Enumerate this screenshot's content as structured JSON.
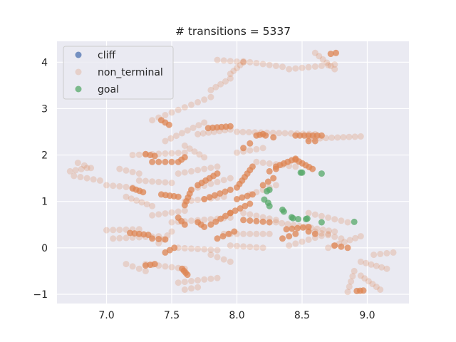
{
  "chart_data": {
    "type": "scatter",
    "title": "# transitions = 5337",
    "xlabel": "",
    "ylabel": "",
    "xlim": [
      6.62,
      9.32
    ],
    "ylim": [
      -1.2,
      4.45
    ],
    "xticks": [
      "7.0",
      "7.5",
      "8.0",
      "8.5",
      "9.0"
    ],
    "yticks": [
      "−1",
      "0",
      "1",
      "2",
      "3",
      "4"
    ],
    "grid": true,
    "legend_position": "top-left",
    "colors": {
      "cliff": "#4c72b0",
      "non_terminal": "#dd8452",
      "goal": "#55a868",
      "background": "#eaeaf2"
    },
    "series": [
      {
        "name": "cliff",
        "points": []
      },
      {
        "name": "non_terminal",
        "alpha": 0.25,
        "segments": [
          {
            "start": [
              6.72,
              1.65
            ],
            "end": [
              6.85,
              1.72
            ],
            "n": 4
          },
          {
            "start": [
              6.75,
              1.55
            ],
            "end": [
              6.95,
              1.45
            ],
            "n": 5
          },
          {
            "start": [
              6.78,
              1.83
            ],
            "end": [
              6.88,
              1.72
            ],
            "n": 3
          },
          {
            "start": [
              7.0,
              1.35
            ],
            "end": [
              7.2,
              1.3
            ],
            "n": 5
          },
          {
            "start": [
              7.0,
              0.38
            ],
            "end": [
              7.25,
              0.4
            ],
            "n": 6
          },
          {
            "start": [
              7.05,
              0.2
            ],
            "end": [
              7.4,
              0.25
            ],
            "n": 8
          },
          {
            "start": [
              7.1,
              1.7
            ],
            "end": [
              7.25,
              1.6
            ],
            "n": 4
          },
          {
            "start": [
              7.15,
              1.1
            ],
            "end": [
              7.35,
              0.9
            ],
            "n": 6
          },
          {
            "start": [
              7.2,
              2.0
            ],
            "end": [
              7.6,
              2.05
            ],
            "n": 9
          },
          {
            "start": [
              7.35,
              2.75
            ],
            "end": [
              7.8,
              3.25
            ],
            "n": 10
          },
          {
            "start": [
              7.45,
              2.3
            ],
            "end": [
              7.75,
              2.7
            ],
            "n": 8
          },
          {
            "start": [
              7.7,
              2.45
            ],
            "end": [
              7.95,
              2.55
            ],
            "n": 7
          },
          {
            "start": [
              7.8,
              3.4
            ],
            "end": [
              7.95,
              3.65
            ],
            "n": 5
          },
          {
            "start": [
              7.95,
              3.75
            ],
            "end": [
              8.05,
              4.0
            ],
            "n": 5
          },
          {
            "start": [
              7.85,
              4.05
            ],
            "end": [
              8.05,
              4.0
            ],
            "n": 5
          },
          {
            "start": [
              8.05,
              4.02
            ],
            "end": [
              8.35,
              3.9
            ],
            "n": 7
          },
          {
            "start": [
              8.4,
              3.85
            ],
            "end": [
              8.75,
              3.95
            ],
            "n": 8
          },
          {
            "start": [
              8.6,
              4.2
            ],
            "end": [
              8.75,
              3.85
            ],
            "n": 6
          },
          {
            "start": [
              8.0,
              2.5
            ],
            "end": [
              8.6,
              2.45
            ],
            "n": 14
          },
          {
            "start": [
              8.55,
              2.35
            ],
            "end": [
              8.95,
              2.4
            ],
            "n": 10
          },
          {
            "start": [
              8.15,
              1.85
            ],
            "end": [
              8.45,
              1.75
            ],
            "n": 7
          },
          {
            "start": [
              8.0,
              2.05
            ],
            "end": [
              8.2,
              2.15
            ],
            "n": 5
          },
          {
            "start": [
              8.3,
              0.55
            ],
            "end": [
              8.75,
              0.35
            ],
            "n": 11
          },
          {
            "start": [
              8.4,
              0.05
            ],
            "end": [
              8.7,
              0.3
            ],
            "n": 7
          },
          {
            "start": [
              8.7,
              0.0
            ],
            "end": [
              8.95,
              0.25
            ],
            "n": 7
          },
          {
            "start": [
              8.95,
              -0.3
            ],
            "end": [
              9.15,
              -0.45
            ],
            "n": 6
          },
          {
            "start": [
              8.95,
              -0.6
            ],
            "end": [
              9.1,
              -0.9
            ],
            "n": 6
          },
          {
            "start": [
              8.85,
              -0.95
            ],
            "end": [
              8.9,
              -0.5
            ],
            "n": 5
          },
          {
            "start": [
              9.05,
              -0.15
            ],
            "end": [
              9.2,
              -0.1
            ],
            "n": 4
          },
          {
            "start": [
              7.3,
              -0.35
            ],
            "end": [
              7.6,
              -0.45
            ],
            "n": 7
          },
          {
            "start": [
              7.55,
              -0.75
            ],
            "end": [
              7.85,
              -0.65
            ],
            "n": 7
          },
          {
            "start": [
              7.6,
              -0.9
            ],
            "end": [
              7.7,
              -0.85
            ],
            "n": 3
          },
          {
            "start": [
              7.55,
              0.0
            ],
            "end": [
              7.85,
              -0.05
            ],
            "n": 7
          },
          {
            "start": [
              7.8,
              -0.15
            ],
            "end": [
              7.95,
              -0.3
            ],
            "n": 4
          },
          {
            "start": [
              7.95,
              0.05
            ],
            "end": [
              8.2,
              0.0
            ],
            "n": 6
          },
          {
            "start": [
              7.5,
              0.55
            ],
            "end": [
              7.95,
              0.65
            ],
            "n": 10
          },
          {
            "start": [
              7.6,
              1.0
            ],
            "end": [
              7.9,
              1.1
            ],
            "n": 7
          },
          {
            "start": [
              7.7,
              1.3
            ],
            "end": [
              7.95,
              1.5
            ],
            "n": 6
          },
          {
            "start": [
              7.55,
              1.6
            ],
            "end": [
              7.85,
              1.75
            ],
            "n": 7
          },
          {
            "start": [
              7.9,
              0.3
            ],
            "end": [
              8.25,
              0.3
            ],
            "n": 8
          },
          {
            "start": [
              8.05,
              0.75
            ],
            "end": [
              8.3,
              0.6
            ],
            "n": 6
          },
          {
            "start": [
              8.1,
              1.15
            ],
            "end": [
              8.3,
              1.35
            ],
            "n": 5
          },
          {
            "start": [
              7.25,
              1.45
            ],
            "end": [
              7.5,
              1.4
            ],
            "n": 6
          },
          {
            "start": [
              7.35,
              0.7
            ],
            "end": [
              7.6,
              0.8
            ],
            "n": 6
          },
          {
            "start": [
              7.4,
              0.1
            ],
            "end": [
              7.5,
              0.35
            ],
            "n": 4
          },
          {
            "start": [
              7.6,
              2.2
            ],
            "end": [
              7.75,
              1.95
            ],
            "n": 5
          },
          {
            "start": [
              7.15,
              -0.35
            ],
            "end": [
              7.3,
              -0.5
            ],
            "n": 4
          },
          {
            "start": [
              8.55,
              0.75
            ],
            "end": [
              8.85,
              0.55
            ],
            "n": 7
          },
          {
            "start": [
              8.6,
              0.35
            ],
            "end": [
              8.8,
              0.2
            ],
            "n": 5
          }
        ]
      },
      {
        "name": "non_terminal",
        "alpha": 0.75,
        "segments": [
          {
            "start": [
              7.18,
              0.32
            ],
            "end": [
              7.32,
              0.28
            ],
            "n": 5
          },
          {
            "start": [
              7.2,
              1.28
            ],
            "end": [
              7.28,
              1.2
            ],
            "n": 4
          },
          {
            "start": [
              7.3,
              2.02
            ],
            "end": [
              7.37,
              1.98
            ],
            "n": 3
          },
          {
            "start": [
              7.35,
              1.85
            ],
            "end": [
              7.5,
              1.85
            ],
            "n": 4
          },
          {
            "start": [
              7.42,
              2.75
            ],
            "end": [
              7.48,
              2.65
            ],
            "n": 3
          },
          {
            "start": [
              7.42,
              1.15
            ],
            "end": [
              7.55,
              1.1
            ],
            "n": 5
          },
          {
            "start": [
              7.35,
              0.2
            ],
            "end": [
              7.45,
              0.18
            ],
            "n": 3
          },
          {
            "start": [
              7.3,
              -0.38
            ],
            "end": [
              7.37,
              -0.35
            ],
            "n": 3
          },
          {
            "start": [
              7.45,
              -0.1
            ],
            "end": [
              7.52,
              0.0
            ],
            "n": 3
          },
          {
            "start": [
              7.58,
              -0.45
            ],
            "end": [
              7.62,
              -0.58
            ],
            "n": 4
          },
          {
            "start": [
              7.55,
              0.65
            ],
            "end": [
              7.6,
              0.5
            ],
            "n": 3
          },
          {
            "start": [
              7.6,
              0.92
            ],
            "end": [
              7.65,
              1.25
            ],
            "n": 5
          },
          {
            "start": [
              7.6,
              1.95
            ],
            "end": [
              7.55,
              1.85
            ],
            "n": 3
          },
          {
            "start": [
              7.7,
              1.35
            ],
            "end": [
              7.85,
              1.6
            ],
            "n": 6
          },
          {
            "start": [
              7.75,
              1.05
            ],
            "end": [
              7.95,
              1.25
            ],
            "n": 6
          },
          {
            "start": [
              7.8,
              0.5
            ],
            "end": [
              7.95,
              0.75
            ],
            "n": 5
          },
          {
            "start": [
              7.7,
              0.55
            ],
            "end": [
              7.75,
              0.45
            ],
            "n": 3
          },
          {
            "start": [
              7.85,
              0.2
            ],
            "end": [
              7.98,
              0.35
            ],
            "n": 4
          },
          {
            "start": [
              7.78,
              2.58
            ],
            "end": [
              7.95,
              2.62
            ],
            "n": 6
          },
          {
            "start": [
              8.0,
              1.3
            ],
            "end": [
              8.12,
              1.75
            ],
            "n": 7
          },
          {
            "start": [
              8.0,
              1.05
            ],
            "end": [
              8.12,
              1.15
            ],
            "n": 4
          },
          {
            "start": [
              7.95,
              0.75
            ],
            "end": [
              8.1,
              0.95
            ],
            "n": 5
          },
          {
            "start": [
              8.05,
              0.6
            ],
            "end": [
              8.25,
              0.55
            ],
            "n": 5
          },
          {
            "start": [
              8.15,
              2.42
            ],
            "end": [
              8.2,
              2.45
            ],
            "n": 3
          },
          {
            "start": [
              8.05,
              2.15
            ],
            "end": [
              8.1,
              2.25
            ],
            "n": 2
          },
          {
            "start": [
              8.22,
              2.42
            ],
            "end": [
              8.28,
              2.38
            ],
            "n": 2
          },
          {
            "start": [
              8.25,
              1.65
            ],
            "end": [
              8.3,
              1.7
            ],
            "n": 2
          },
          {
            "start": [
              8.3,
              1.75
            ],
            "end": [
              8.45,
              1.92
            ],
            "n": 6
          },
          {
            "start": [
              8.45,
              1.9
            ],
            "end": [
              8.58,
              1.7
            ],
            "n": 6
          },
          {
            "start": [
              8.45,
              2.42
            ],
            "end": [
              8.65,
              2.42
            ],
            "n": 7
          },
          {
            "start": [
              8.55,
              2.3
            ],
            "end": [
              8.6,
              2.3
            ],
            "n": 2
          },
          {
            "start": [
              8.38,
              0.4
            ],
            "end": [
              8.55,
              0.45
            ],
            "n": 5
          },
          {
            "start": [
              8.35,
              0.2
            ],
            "end": [
              8.45,
              0.3
            ],
            "n": 3
          },
          {
            "start": [
              8.55,
              0.35
            ],
            "end": [
              8.6,
              0.3
            ],
            "n": 2
          },
          {
            "start": [
              8.75,
              0.05
            ],
            "end": [
              8.85,
              0.0
            ],
            "n": 3
          },
          {
            "start": [
              8.72,
              4.18
            ],
            "end": [
              8.76,
              4.2
            ],
            "n": 2
          },
          {
            "start": [
              8.92,
              -0.93
            ],
            "end": [
              8.97,
              -0.92
            ],
            "n": 3
          },
          {
            "start": [
              8.2,
              1.35
            ],
            "end": [
              8.28,
              1.5
            ],
            "n": 3
          }
        ]
      },
      {
        "name": "goal",
        "points": [
          [
            8.23,
            1.22
          ],
          [
            8.25,
            1.25
          ],
          [
            8.21,
            1.04
          ],
          [
            8.24,
            0.97
          ],
          [
            8.25,
            0.9
          ],
          [
            8.35,
            0.82
          ],
          [
            8.36,
            0.78
          ],
          [
            8.42,
            0.66
          ],
          [
            8.43,
            0.64
          ],
          [
            8.47,
            0.62
          ],
          [
            8.49,
            1.62
          ],
          [
            8.5,
            1.62
          ],
          [
            8.65,
            1.6
          ],
          [
            8.53,
            0.62
          ],
          [
            8.54,
            0.63
          ],
          [
            8.65,
            0.55
          ],
          [
            8.9,
            0.56
          ]
        ]
      }
    ]
  },
  "legend": {
    "items": [
      {
        "label": "cliff",
        "color": "#4c72b0"
      },
      {
        "label": "non_terminal",
        "color": "#dd8452"
      },
      {
        "label": "goal",
        "color": "#55a868"
      }
    ]
  }
}
